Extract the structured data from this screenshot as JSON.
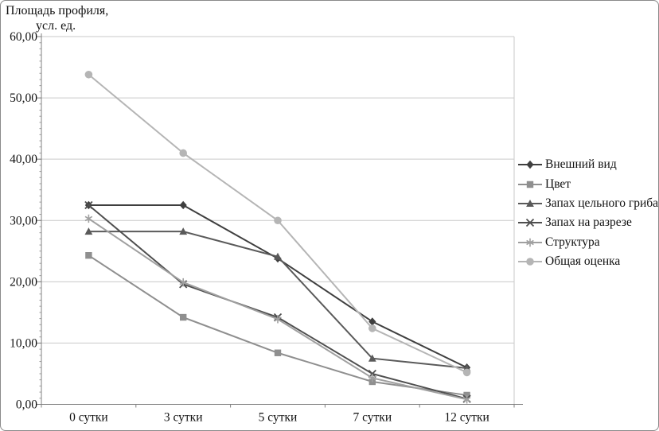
{
  "axis_title": {
    "line1": "Площадь профиля,",
    "line2": "усл. ед."
  },
  "chart_data": {
    "type": "line",
    "title": "",
    "ylabel": "Площадь профиля, усл. ед.",
    "xlabel": "",
    "categories": [
      "0 сутки",
      "3 сутки",
      "5 сутки",
      "7 сутки",
      "12 сутки"
    ],
    "ylim": [
      0,
      60
    ],
    "y_tick_step": 10,
    "y_tick_labels": [
      "0,00",
      "10,00",
      "20,00",
      "30,00",
      "40,00",
      "50,00",
      "60,00"
    ],
    "grid": true,
    "legend_position": "right",
    "series": [
      {
        "name": "Внешний вид",
        "marker": "diamond",
        "color": "#3f3f3f",
        "values": [
          32.5,
          32.5,
          23.8,
          13.5,
          6.0
        ]
      },
      {
        "name": "Цвет",
        "marker": "square",
        "color": "#8f8f8f",
        "values": [
          24.3,
          14.2,
          8.4,
          3.7,
          1.5
        ]
      },
      {
        "name": "Запах цельного гриба",
        "marker": "triangle",
        "color": "#5a5a5a",
        "values": [
          28.2,
          28.2,
          24.1,
          7.5,
          5.9
        ]
      },
      {
        "name": "Запах на разрезе",
        "marker": "x",
        "color": "#4f4f4f",
        "values": [
          32.5,
          19.6,
          14.2,
          5.0,
          0.9
        ]
      },
      {
        "name": "Структура",
        "marker": "asterisk",
        "color": "#a0a0a0",
        "values": [
          30.3,
          19.9,
          13.9,
          4.3,
          0.8
        ]
      },
      {
        "name": "Общая оценка",
        "marker": "circle",
        "color": "#b5b5b5",
        "values": [
          53.8,
          41.0,
          30.0,
          12.4,
          5.2
        ]
      }
    ],
    "plot_style": {
      "gridline_color": "#c9c9c9",
      "axis_color": "#808080",
      "text_color": "#111111"
    }
  }
}
